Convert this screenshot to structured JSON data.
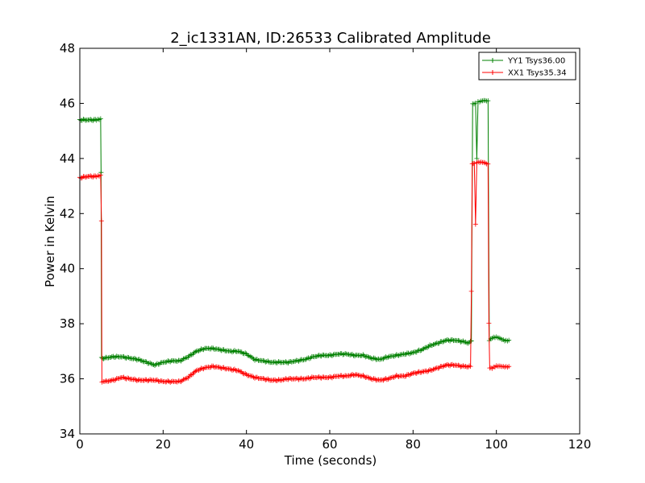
{
  "chart_data": {
    "type": "line",
    "title": "2_ic1331AN, ID:26533 Calibrated Amplitude",
    "xlabel": "Time (seconds)",
    "ylabel": "Power in Kelvin",
    "xlim": [
      0,
      120
    ],
    "ylim": [
      34,
      48
    ],
    "xticks": [
      0,
      20,
      40,
      60,
      80,
      100,
      120
    ],
    "yticks": [
      34,
      36,
      38,
      40,
      42,
      44,
      46,
      48
    ],
    "grid": false,
    "legend_position": "top-right",
    "marker": "+",
    "series": [
      {
        "name": "YY1 Tsys36.00",
        "color": "#008000",
        "points": [
          [
            0,
            45.4
          ],
          [
            2,
            45.4
          ],
          [
            4,
            45.4
          ],
          [
            5,
            45.45
          ],
          [
            5.1,
            43.5
          ],
          [
            5.2,
            36.75
          ],
          [
            6,
            36.75
          ],
          [
            8,
            36.8
          ],
          [
            10,
            36.8
          ],
          [
            12,
            36.75
          ],
          [
            14,
            36.7
          ],
          [
            16,
            36.6
          ],
          [
            18,
            36.5
          ],
          [
            20,
            36.6
          ],
          [
            22,
            36.65
          ],
          [
            24,
            36.65
          ],
          [
            26,
            36.8
          ],
          [
            28,
            37.0
          ],
          [
            30,
            37.1
          ],
          [
            32,
            37.1
          ],
          [
            34,
            37.05
          ],
          [
            36,
            37.0
          ],
          [
            38,
            37.0
          ],
          [
            40,
            36.9
          ],
          [
            42,
            36.7
          ],
          [
            44,
            36.65
          ],
          [
            46,
            36.6
          ],
          [
            48,
            36.6
          ],
          [
            50,
            36.6
          ],
          [
            52,
            36.65
          ],
          [
            54,
            36.7
          ],
          [
            56,
            36.8
          ],
          [
            58,
            36.85
          ],
          [
            60,
            36.85
          ],
          [
            62,
            36.9
          ],
          [
            64,
            36.9
          ],
          [
            66,
            36.85
          ],
          [
            68,
            36.85
          ],
          [
            70,
            36.75
          ],
          [
            72,
            36.7
          ],
          [
            74,
            36.8
          ],
          [
            76,
            36.85
          ],
          [
            78,
            36.9
          ],
          [
            80,
            36.95
          ],
          [
            82,
            37.05
          ],
          [
            84,
            37.2
          ],
          [
            86,
            37.3
          ],
          [
            88,
            37.4
          ],
          [
            90,
            37.4
          ],
          [
            92,
            37.35
          ],
          [
            93.5,
            37.3
          ],
          [
            94,
            37.4
          ],
          [
            94.3,
            46.0
          ],
          [
            95,
            46.0
          ],
          [
            95.3,
            44.0
          ],
          [
            95.6,
            46.05
          ],
          [
            96,
            46.05
          ],
          [
            97,
            46.1
          ],
          [
            98,
            46.1
          ],
          [
            98.3,
            37.4
          ],
          [
            99,
            37.5
          ],
          [
            100,
            37.5
          ],
          [
            101,
            37.45
          ],
          [
            102,
            37.4
          ],
          [
            103,
            37.4
          ]
        ]
      },
      {
        "name": "XX1 Tsys35.34",
        "color": "#ff0000",
        "points": [
          [
            0,
            43.3
          ],
          [
            2,
            43.35
          ],
          [
            4,
            43.35
          ],
          [
            5,
            43.4
          ],
          [
            5.2,
            41.7
          ],
          [
            5.3,
            35.9
          ],
          [
            6,
            35.9
          ],
          [
            8,
            35.95
          ],
          [
            10,
            36.05
          ],
          [
            12,
            36.0
          ],
          [
            14,
            35.95
          ],
          [
            16,
            35.95
          ],
          [
            18,
            35.95
          ],
          [
            20,
            35.9
          ],
          [
            22,
            35.9
          ],
          [
            24,
            35.9
          ],
          [
            26,
            36.05
          ],
          [
            28,
            36.3
          ],
          [
            30,
            36.4
          ],
          [
            32,
            36.45
          ],
          [
            34,
            36.4
          ],
          [
            36,
            36.35
          ],
          [
            38,
            36.3
          ],
          [
            40,
            36.15
          ],
          [
            42,
            36.05
          ],
          [
            44,
            36.0
          ],
          [
            46,
            35.95
          ],
          [
            48,
            35.95
          ],
          [
            50,
            36.0
          ],
          [
            52,
            36.0
          ],
          [
            54,
            36.0
          ],
          [
            56,
            36.05
          ],
          [
            58,
            36.05
          ],
          [
            60,
            36.05
          ],
          [
            62,
            36.1
          ],
          [
            64,
            36.1
          ],
          [
            66,
            36.15
          ],
          [
            68,
            36.1
          ],
          [
            70,
            36.0
          ],
          [
            72,
            35.95
          ],
          [
            74,
            36.0
          ],
          [
            76,
            36.1
          ],
          [
            78,
            36.1
          ],
          [
            80,
            36.2
          ],
          [
            82,
            36.25
          ],
          [
            84,
            36.3
          ],
          [
            86,
            36.4
          ],
          [
            88,
            36.5
          ],
          [
            90,
            36.5
          ],
          [
            92,
            36.45
          ],
          [
            93.8,
            36.45
          ],
          [
            94,
            39.2
          ],
          [
            94.2,
            43.8
          ],
          [
            94.7,
            43.85
          ],
          [
            95.0,
            41.6
          ],
          [
            95.3,
            43.85
          ],
          [
            96,
            43.85
          ],
          [
            97,
            43.85
          ],
          [
            98,
            43.8
          ],
          [
            98.2,
            38.0
          ],
          [
            98.4,
            36.4
          ],
          [
            99,
            36.4
          ],
          [
            100,
            36.45
          ],
          [
            101,
            36.45
          ],
          [
            102,
            36.45
          ],
          [
            103,
            36.45
          ]
        ]
      }
    ]
  }
}
